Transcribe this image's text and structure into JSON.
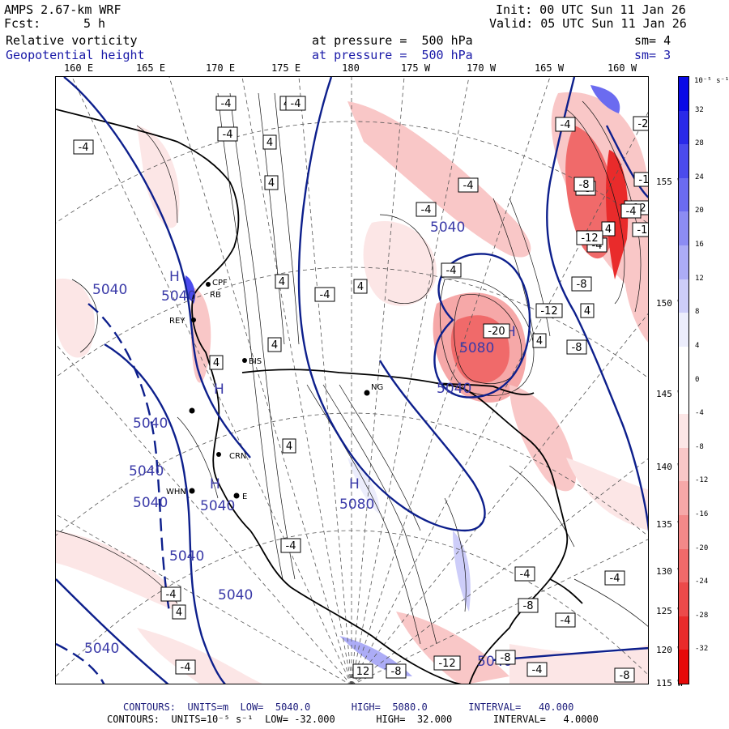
{
  "header": {
    "model": "AMPS 2.67-km WRF",
    "fcst_label": "Fcst:",
    "fcst_value": "5 h",
    "init": "Init: 00 UTC Sun 11 Jan 26",
    "valid": "Valid: 05 UTC Sun 11 Jan 26",
    "field1": {
      "name": "Relative vorticity",
      "pressure": "at pressure =  500 hPa",
      "sm": "sm= 4"
    },
    "field2": {
      "name": "Geopotential height",
      "pressure": "at pressure =  500 hPa",
      "sm": "sm= 3"
    }
  },
  "longitude_labels": [
    {
      "text": "160 E",
      "x": 160
    },
    {
      "text": "165 E",
      "x": 165
    },
    {
      "text": "170 E",
      "x": 170
    },
    {
      "text": "175 E",
      "x": 175
    },
    {
      "text": "180",
      "x": 180
    },
    {
      "text": "175 W",
      "x": 185
    },
    {
      "text": "170 W",
      "x": 190
    },
    {
      "text": "165 W",
      "x": 195
    },
    {
      "text": "160 W",
      "x": 200
    }
  ],
  "latitude_labels": [
    "155 W",
    "150 W",
    "145 W",
    "140 W",
    "135 W",
    "130 W",
    "125 W",
    "120 W",
    "115 W"
  ],
  "colorbar": {
    "units": "10⁻⁵ s⁻¹",
    "ticks": [
      "32",
      "28",
      "24",
      "20",
      "16",
      "12",
      "8",
      "4",
      "0",
      "-4",
      "-8",
      "-12",
      "-16",
      "-20",
      "-24",
      "-28",
      "-32"
    ],
    "colors": [
      "#0a0ae6",
      "#2a2ae9",
      "#4b4bed",
      "#6b6bf0",
      "#8c8cf3",
      "#acacf6",
      "#cdcdf9",
      "#ecedfc",
      "#ffffff",
      "#ffffff",
      "#fce6e6",
      "#f9c7c7",
      "#f6a8a8",
      "#f38989",
      "#f06a6a",
      "#ec4a4a",
      "#e92b2b",
      "#e60a0a"
    ]
  },
  "stations": [
    "CPF",
    "RB",
    "REY",
    "BIS",
    "NG",
    "CRN",
    "WHN",
    "E"
  ],
  "height_labels": [
    "5040",
    "5040",
    "5040",
    "5040",
    "5040",
    "5040",
    "5040",
    "5040",
    "5040",
    "5040",
    "5040",
    "5080",
    "5080",
    "5040"
  ],
  "extrema": [
    "H",
    "H",
    "H",
    "H",
    "H"
  ],
  "vort_labels": [
    "-4",
    "-4",
    "-4",
    "4",
    "4",
    "-4",
    "4",
    "-20",
    "-12",
    "-12",
    "-4",
    "-8",
    "4",
    "-4",
    "-8",
    "-4",
    "-8",
    "-12",
    "-12",
    "4",
    "-20",
    "-12",
    "-8",
    "4",
    "-4",
    "-4",
    "-4",
    "-4",
    "4",
    "4",
    "4",
    "4",
    "4",
    "-4",
    "-4",
    "4",
    "-4",
    "-8",
    "-12",
    "12",
    "-8",
    "-4",
    "-4",
    "-8",
    "-4",
    "-8",
    "-4"
  ],
  "footer": {
    "line1": "CONTOURS:  UNITS=m  LOW=  5040.0       HIGH=  5080.0       INTERVAL=   40.000",
    "line2": "CONTOURS:  UNITS=10⁻⁵ s⁻¹  LOW= -32.000       HIGH=  32.000       INTERVAL=   4.0000"
  },
  "colors": {
    "height_contour": "#0d1f8c",
    "vorticity_contour": "#000000",
    "label_blue": "#3a3aa8"
  }
}
